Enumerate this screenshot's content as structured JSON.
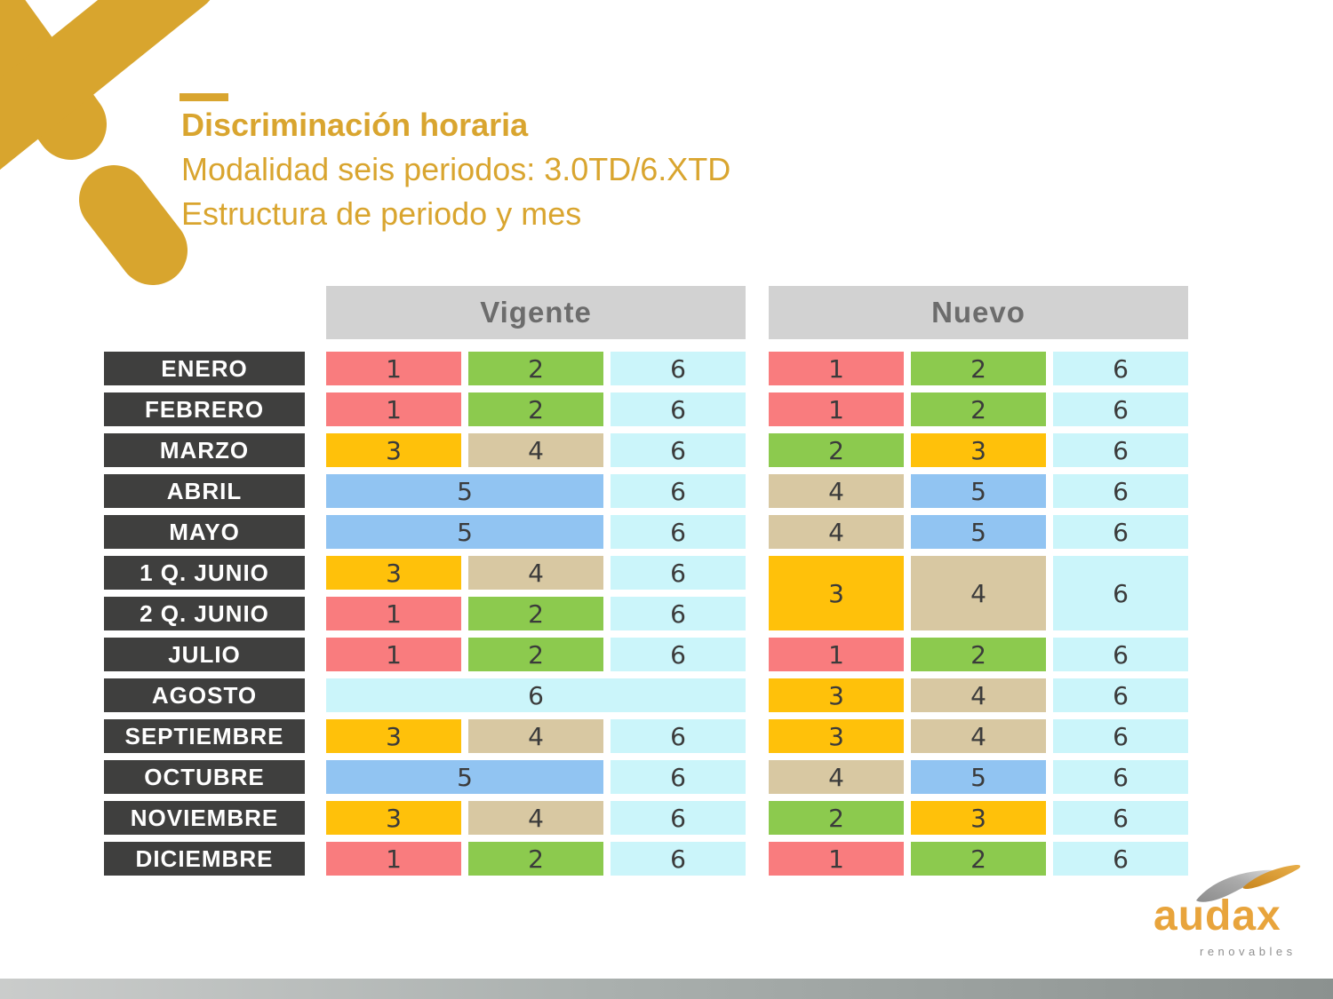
{
  "title": {
    "line1": "Discriminación horaria",
    "line2": "Modalidad seis periodos: 3.0TD/6.XTD",
    "line3": "Estructura de periodo y mes"
  },
  "colors": {
    "accent_gold": "#D9A52F",
    "x_logo_gold": "#D8A52E",
    "month_bg": "#3F3F3E",
    "header_bg": "#D2D2D2",
    "header_text": "#6C6C6C",
    "cell_text": "#3B3B3B",
    "p1": "#F97C7E",
    "p2": "#8CCA4E",
    "p3": "#FFC10A",
    "p4": "#D8C8A2",
    "p5": "#91C4F2",
    "p6": "#CBF5FA"
  },
  "months": [
    "ENERO",
    "FEBRERO",
    "MARZO",
    "ABRIL",
    "MAYO",
    "1 Q. JUNIO",
    "2 Q. JUNIO",
    "JULIO",
    "AGOSTO",
    "SEPTIEMBRE",
    "OCTUBRE",
    "NOVIEMBRE",
    "DICIEMBRE"
  ],
  "tables": [
    {
      "name": "Vigente",
      "rows": [
        [
          {
            "v": "1",
            "p": 1
          },
          {
            "v": "2",
            "p": 2
          },
          {
            "v": "6",
            "p": 6
          }
        ],
        [
          {
            "v": "1",
            "p": 1
          },
          {
            "v": "2",
            "p": 2
          },
          {
            "v": "6",
            "p": 6
          }
        ],
        [
          {
            "v": "3",
            "p": 3
          },
          {
            "v": "4",
            "p": 4
          },
          {
            "v": "6",
            "p": 6
          }
        ],
        [
          {
            "v": "5",
            "p": 5,
            "colspan": 2
          },
          {
            "v": "6",
            "p": 6
          }
        ],
        [
          {
            "v": "5",
            "p": 5,
            "colspan": 2
          },
          {
            "v": "6",
            "p": 6
          }
        ],
        [
          {
            "v": "3",
            "p": 3
          },
          {
            "v": "4",
            "p": 4
          },
          {
            "v": "6",
            "p": 6
          }
        ],
        [
          {
            "v": "1",
            "p": 1
          },
          {
            "v": "2",
            "p": 2
          },
          {
            "v": "6",
            "p": 6
          }
        ],
        [
          {
            "v": "1",
            "p": 1
          },
          {
            "v": "2",
            "p": 2
          },
          {
            "v": "6",
            "p": 6
          }
        ],
        [
          {
            "v": "6",
            "p": 6,
            "colspan": 3
          }
        ],
        [
          {
            "v": "3",
            "p": 3
          },
          {
            "v": "4",
            "p": 4
          },
          {
            "v": "6",
            "p": 6
          }
        ],
        [
          {
            "v": "5",
            "p": 5,
            "colspan": 2
          },
          {
            "v": "6",
            "p": 6
          }
        ],
        [
          {
            "v": "3",
            "p": 3
          },
          {
            "v": "4",
            "p": 4
          },
          {
            "v": "6",
            "p": 6
          }
        ],
        [
          {
            "v": "1",
            "p": 1
          },
          {
            "v": "2",
            "p": 2
          },
          {
            "v": "6",
            "p": 6
          }
        ]
      ]
    },
    {
      "name": "Nuevo",
      "rows": [
        [
          {
            "v": "1",
            "p": 1
          },
          {
            "v": "2",
            "p": 2
          },
          {
            "v": "6",
            "p": 6
          }
        ],
        [
          {
            "v": "1",
            "p": 1
          },
          {
            "v": "2",
            "p": 2
          },
          {
            "v": "6",
            "p": 6
          }
        ],
        [
          {
            "v": "2",
            "p": 2
          },
          {
            "v": "3",
            "p": 3
          },
          {
            "v": "6",
            "p": 6
          }
        ],
        [
          {
            "v": "4",
            "p": 4
          },
          {
            "v": "5",
            "p": 5
          },
          {
            "v": "6",
            "p": 6
          }
        ],
        [
          {
            "v": "4",
            "p": 4
          },
          {
            "v": "5",
            "p": 5
          },
          {
            "v": "6",
            "p": 6
          }
        ],
        [
          {
            "v": "3",
            "p": 3,
            "rowspan": 2
          },
          {
            "v": "4",
            "p": 4,
            "rowspan": 2
          },
          {
            "v": "6",
            "p": 6,
            "rowspan": 2
          }
        ],
        [],
        [
          {
            "v": "1",
            "p": 1
          },
          {
            "v": "2",
            "p": 2
          },
          {
            "v": "6",
            "p": 6
          }
        ],
        [
          {
            "v": "3",
            "p": 3
          },
          {
            "v": "4",
            "p": 4
          },
          {
            "v": "6",
            "p": 6
          }
        ],
        [
          {
            "v": "3",
            "p": 3
          },
          {
            "v": "4",
            "p": 4
          },
          {
            "v": "6",
            "p": 6
          }
        ],
        [
          {
            "v": "4",
            "p": 4
          },
          {
            "v": "5",
            "p": 5
          },
          {
            "v": "6",
            "p": 6
          }
        ],
        [
          {
            "v": "2",
            "p": 2
          },
          {
            "v": "3",
            "p": 3
          },
          {
            "v": "6",
            "p": 6
          }
        ],
        [
          {
            "v": "1",
            "p": 1
          },
          {
            "v": "2",
            "p": 2
          },
          {
            "v": "6",
            "p": 6
          }
        ]
      ]
    }
  ],
  "logo": {
    "brand": "audax",
    "sub": "renovables"
  }
}
